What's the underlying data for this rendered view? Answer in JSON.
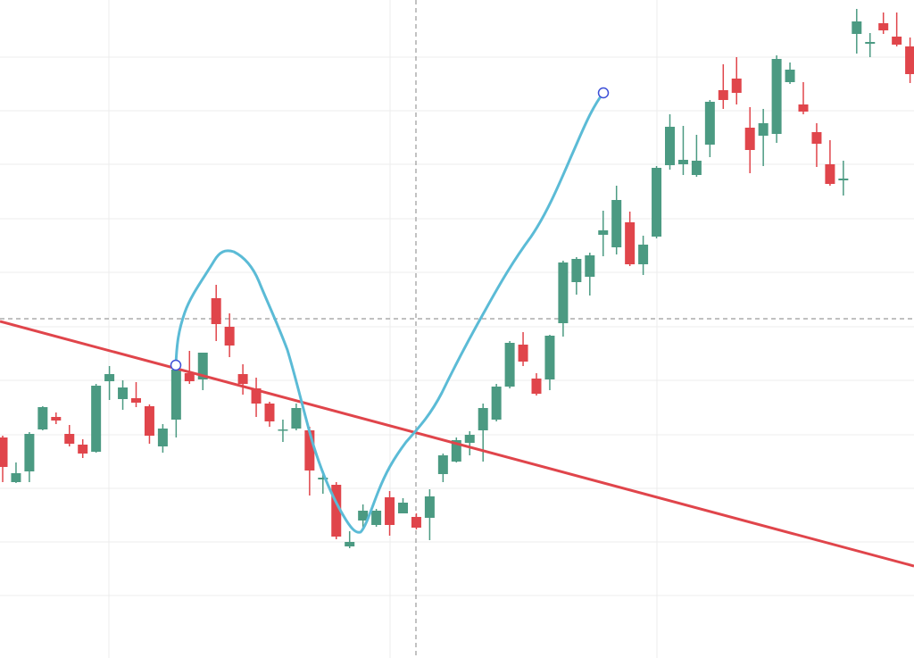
{
  "chart_data": {
    "type": "candlestick",
    "ylim": [
      0,
      737
    ],
    "up_color": "#4b9a82",
    "down_color": "#e0454b",
    "open": [
      247,
      197,
      209,
      256,
      270,
      251,
      239,
      231,
      310,
      290,
      291,
      282,
      237,
      267,
      319,
      312,
      403,
      371,
      318,
      302,
      285,
      255,
      257,
      255,
      200,
      194,
      125,
      154,
      149,
      180,
      162,
      158,
      157,
      206,
      220,
      241,
      255,
      267,
      304,
      351,
      313,
      312,
      375,
      421,
      427,
      474,
      460,
      488,
      441,
      472,
      552,
      553,
      541,
      575,
      636,
      649,
      594,
      585,
      587,
      645,
      620,
      589,
      553,
      535,
      699,
      688,
      711,
      696,
      685
    ],
    "high": [
      249,
      219,
      253,
      282,
      275,
      261,
      245,
      307,
      327,
      311,
      309,
      284,
      262,
      333,
      344,
      342,
      418,
      386,
      329,
      314,
      287,
      267,
      285,
      259,
      210,
      197,
      142,
      172,
      167,
      187,
      179,
      162,
      189,
      229,
      247,
      254,
      285,
      307,
      355,
      365,
      319,
      362,
      445,
      449,
      454,
      501,
      529,
      500,
      473,
      551,
      609,
      596,
      586,
      625,
      665,
      673,
      617,
      615,
      675,
      667,
      645,
      599,
      580,
      557,
      727,
      700,
      723,
      723,
      695
    ],
    "low": [
      197,
      196,
      197,
      255,
      262,
      237,
      224,
      230,
      289,
      278,
      281,
      240,
      230,
      247,
      307,
      300,
      355,
      337,
      295,
      270,
      259,
      242,
      255,
      182,
      184,
      133,
      123,
      145,
      147,
      137,
      162,
      144,
      132,
      197,
      219,
      227,
      220,
      265,
      302,
      327,
      294,
      300,
      360,
      407,
      406,
      450,
      452,
      439,
      429,
      470,
      547,
      541,
      539,
      561,
      615,
      620,
      543,
      551,
      577,
      643,
      609,
      550,
      529,
      518,
      677,
      673,
      699,
      685,
      644
    ],
    "close": [
      214,
      207,
      251,
      281,
      266,
      240,
      229,
      305,
      318,
      303,
      286,
      249,
      257,
      323,
      310,
      342,
      374,
      350,
      307,
      285,
      265,
      256,
      280,
      210,
      202,
      136,
      130,
      165,
      165,
      149,
      174,
      146,
      181,
      227,
      244,
      250,
      280,
      304,
      353,
      332,
      296,
      361,
      443,
      447,
      451,
      479,
      513,
      441,
      463,
      549,
      595,
      558,
      557,
      623,
      625,
      633,
      569,
      599,
      671,
      659,
      612,
      576,
      531,
      537,
      713,
      690,
      703,
      687,
      654
    ]
  }
}
